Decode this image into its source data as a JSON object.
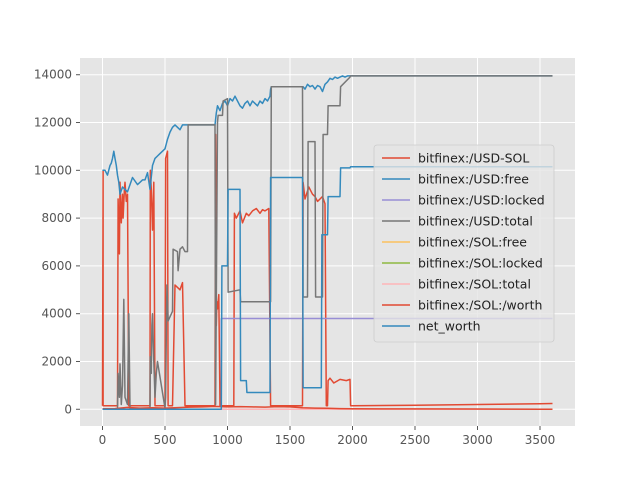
{
  "chart_data": {
    "type": "line",
    "title": "",
    "xlabel": "",
    "ylabel": "",
    "xlim": [
      -180,
      3780
    ],
    "ylim": [
      -700,
      14700
    ],
    "grid": true,
    "legend_position": "center-right",
    "x_ticks": [
      0,
      500,
      1000,
      1500,
      2000,
      2500,
      3000,
      3500
    ],
    "y_ticks": [
      0,
      2000,
      4000,
      6000,
      8000,
      10000,
      12000,
      14000
    ],
    "series": [
      {
        "name": "bitfinex:/USD-SOL",
        "color": "#E24A33",
        "x": [
          0,
          5,
          5,
          120,
          125,
          135,
          140,
          150,
          160,
          165,
          175,
          180,
          190,
          200,
          210,
          215,
          220,
          380,
          382,
          390,
          400,
          410,
          420,
          500,
          505,
          520,
          525,
          560,
          580,
          600,
          620,
          640,
          660,
          900,
          905,
          910,
          915,
          920,
          930,
          940,
          950,
          960,
          1000,
          1050,
          1055,
          1070,
          1100,
          1120,
          1150,
          1170,
          1200,
          1230,
          1260,
          1280,
          1300,
          1330,
          1345,
          1350,
          1600,
          1605,
          1620,
          1650,
          1680,
          1700,
          1720,
          1740,
          1760,
          1780,
          1790,
          1800,
          1805,
          1820,
          1850,
          1900,
          1950,
          1980,
          1985,
          2000,
          2500,
          3000,
          3500,
          3600
        ],
        "values": [
          150,
          10000,
          150,
          150,
          8800,
          6500,
          9500,
          7800,
          9000,
          8000,
          9200,
          9500,
          8700,
          9000,
          150,
          150,
          150,
          150,
          10000,
          9200,
          7500,
          9500,
          150,
          150,
          10500,
          10800,
          150,
          150,
          5200,
          5100,
          5000,
          5300,
          150,
          150,
          11500,
          3500,
          4500,
          4200,
          4800,
          150,
          150,
          150,
          150,
          150,
          8200,
          8000,
          8300,
          7800,
          8200,
          8100,
          8300,
          8400,
          8200,
          8350,
          8300,
          8400,
          150,
          150,
          150,
          9500,
          8800,
          9300,
          9000,
          8900,
          8700,
          8800,
          8900,
          8600,
          150,
          150,
          1200,
          1300,
          1100,
          1250,
          1200,
          1250,
          150,
          150,
          170,
          200,
          230,
          240
        ]
      },
      {
        "name": "bitfinex:/USD:free",
        "color": "#348ABD",
        "x": [
          0,
          20,
          40,
          60,
          70,
          80,
          90,
          100,
          110,
          120,
          130,
          140,
          160,
          200,
          240,
          280,
          300,
          320,
          340,
          360,
          380,
          400,
          420,
          440,
          460,
          480,
          500,
          520,
          540,
          560,
          580,
          600,
          620,
          640,
          680,
          700,
          750,
          800,
          900,
          910,
          920,
          940,
          960,
          980,
          1000,
          1020,
          1040,
          1060,
          1080,
          1100,
          1120,
          1140,
          1160,
          1180,
          1200,
          1220,
          1240,
          1260,
          1280,
          1300,
          1320,
          1340,
          1345,
          1350,
          1600,
          1605,
          1620,
          1640,
          1660,
          1680,
          1700,
          1720,
          1740,
          1760,
          1780,
          1800,
          1820,
          1840,
          1860,
          1880,
          1900,
          1920,
          1940,
          1960,
          1980,
          2000,
          2500,
          3000,
          3500,
          3600
        ],
        "values": [
          10000,
          10000,
          9800,
          10200,
          10300,
          10500,
          10800,
          10500,
          10200,
          9800,
          9500,
          9000,
          9300,
          9100,
          9700,
          9400,
          9500,
          9600,
          9600,
          9900,
          9200,
          10200,
          10500,
          10600,
          10700,
          10800,
          10900,
          11300,
          11600,
          11800,
          11900,
          11800,
          11700,
          11900,
          11900,
          11900,
          11900,
          11900,
          11900,
          12400,
          12700,
          12500,
          12800,
          12900,
          12700,
          13000,
          12900,
          13100,
          12900,
          12700,
          12600,
          12800,
          12900,
          12700,
          12900,
          12800,
          12700,
          12900,
          12800,
          13000,
          12900,
          13100,
          13400,
          13500,
          13500,
          13500,
          13400,
          13600,
          13500,
          13550,
          13400,
          13550,
          13500,
          13300,
          13600,
          13700,
          13850,
          13800,
          13900,
          13850,
          13900,
          13950,
          13900,
          13950,
          13950,
          13950,
          13950,
          13950,
          13950,
          13950
        ]
      },
      {
        "name": "bitfinex:/USD:locked",
        "color": "#988ED5",
        "x": [
          0,
          950,
          950,
          3600
        ],
        "values": [
          0,
          0,
          3800,
          3800
        ]
      },
      {
        "name": "bitfinex:/USD:total",
        "color": "#777777",
        "x": [
          0,
          120,
          125,
          135,
          140,
          150,
          160,
          170,
          180,
          200,
          210,
          220,
          380,
          382,
          390,
          395,
          400,
          410,
          420,
          430,
          440,
          500,
          505,
          515,
          520,
          525,
          560,
          565,
          600,
          605,
          620,
          640,
          660,
          680,
          685,
          900,
          905,
          920,
          925,
          960,
          965,
          1000,
          1005,
          1100,
          1105,
          1150,
          1155,
          1345,
          1350,
          1600,
          1605,
          1640,
          1645,
          1700,
          1705,
          1760,
          1765,
          1800,
          1805,
          1900,
          1905,
          1980,
          1985,
          3600
        ],
        "values": [
          0,
          0,
          1500,
          500,
          1900,
          200,
          1000,
          4600,
          500,
          200,
          4000,
          50,
          50,
          2200,
          1500,
          3500,
          4000,
          2000,
          500,
          1500,
          2000,
          50,
          500,
          5200,
          4500,
          3700,
          4100,
          6700,
          6600,
          5800,
          6700,
          6800,
          6600,
          6600,
          11900,
          11900,
          200,
          12000,
          12300,
          12300,
          12900,
          13000,
          4900,
          5000,
          4500,
          4500,
          4500,
          4500,
          13500,
          13500,
          4700,
          4700,
          11200,
          11200,
          4700,
          4700,
          11500,
          11500,
          12700,
          12700,
          13500,
          13900,
          13950,
          13950
        ]
      },
      {
        "name": "bitfinex:/SOL:free",
        "color": "#FBC15E",
        "x": [
          0,
          3600
        ],
        "values": [
          0,
          0
        ]
      },
      {
        "name": "bitfinex:/SOL:locked",
        "color": "#8EBA42",
        "x": [
          0,
          3600
        ],
        "values": [
          0,
          0
        ]
      },
      {
        "name": "bitfinex:/SOL:total",
        "color": "#FFB5B8",
        "x": [
          0,
          1000,
          3600
        ],
        "values": [
          0,
          0,
          0
        ]
      },
      {
        "name": "bitfinex:/SOL:/worth",
        "color": "#E24A33",
        "x": [
          0,
          100,
          200,
          300,
          400,
          500,
          600,
          700,
          800,
          900,
          1000,
          1100,
          1200,
          1300,
          1400,
          1500,
          1600,
          1700,
          1800,
          1900,
          2000,
          2500,
          3000,
          3500,
          3600
        ],
        "values": [
          20,
          30,
          80,
          40,
          60,
          50,
          70,
          90,
          100,
          120,
          100,
          110,
          100,
          90,
          110,
          100,
          60,
          50,
          40,
          30,
          20,
          15,
          10,
          5,
          5
        ]
      },
      {
        "name": "net_worth",
        "color": "#348ABD",
        "x": [
          0,
          950,
          955,
          1000,
          1005,
          1100,
          1105,
          1150,
          1155,
          1340,
          1345,
          1600,
          1605,
          1750,
          1755,
          1800,
          1805,
          1900,
          1905,
          1980,
          1985,
          3600
        ],
        "values": [
          0,
          0,
          6000,
          6000,
          9200,
          9200,
          1200,
          1200,
          700,
          700,
          9700,
          9700,
          900,
          900,
          7300,
          7300,
          8900,
          8900,
          10100,
          10100,
          10150,
          10150
        ]
      }
    ]
  }
}
